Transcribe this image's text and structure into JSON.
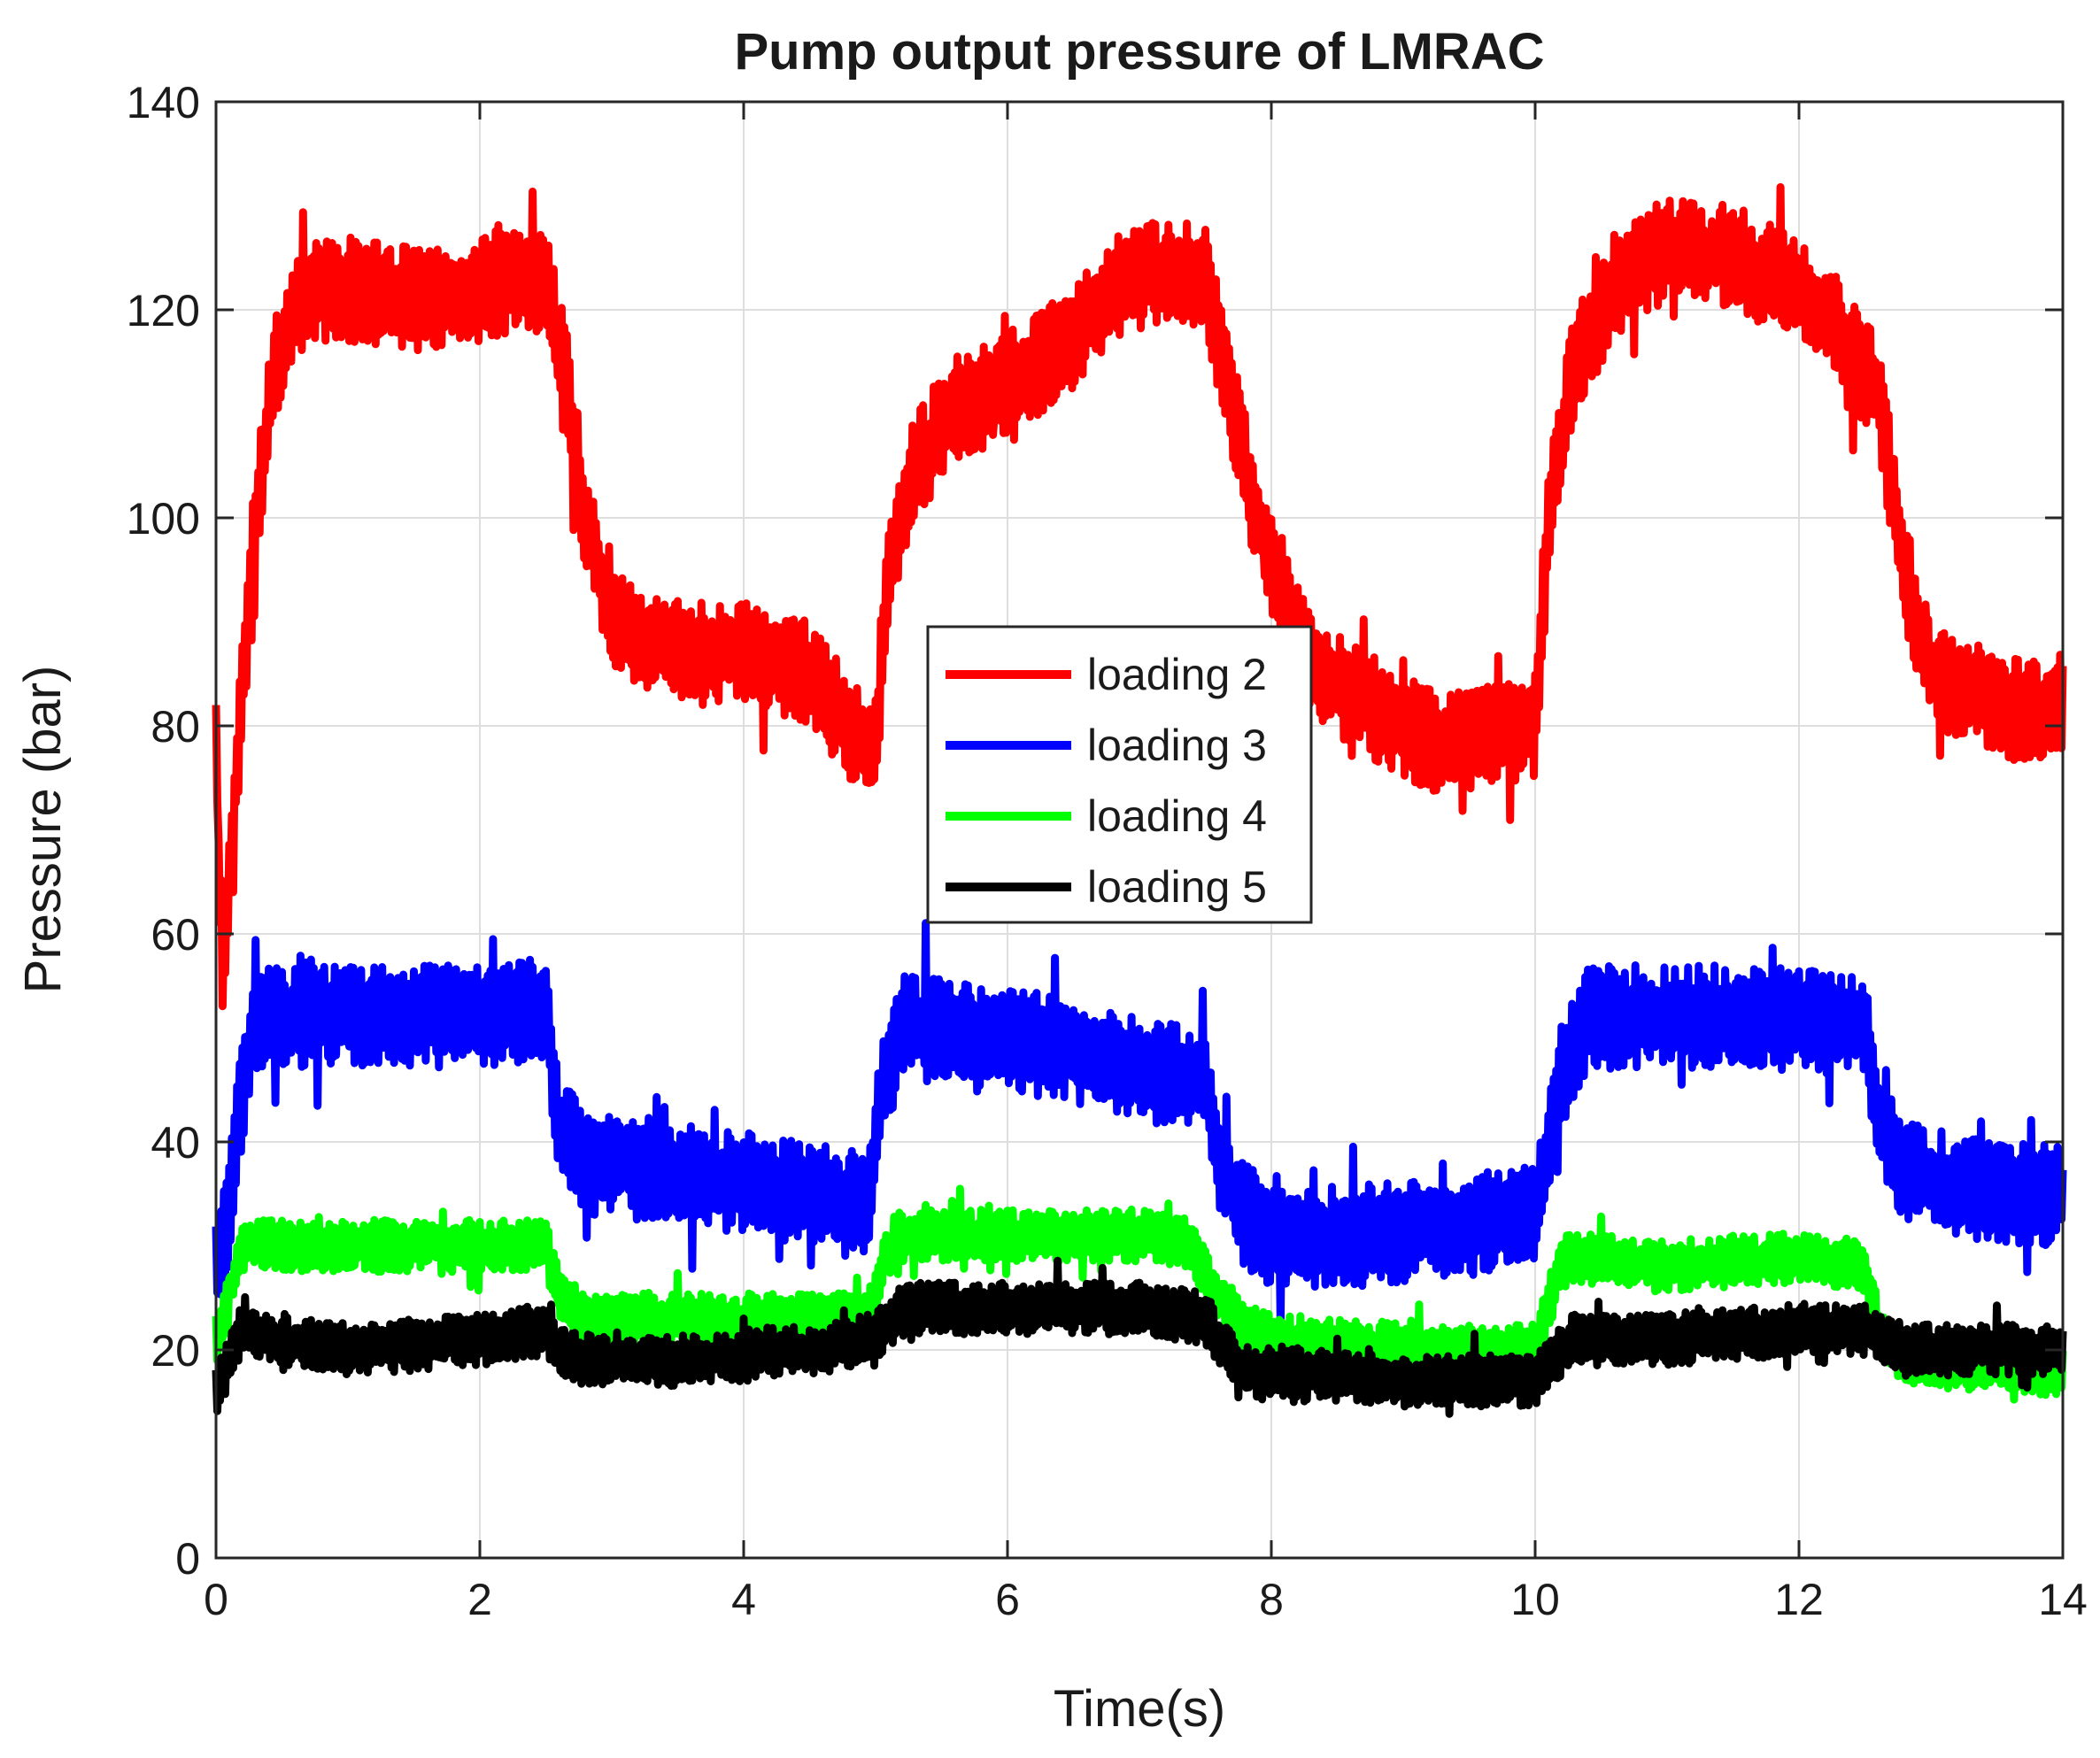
{
  "chart_data": {
    "type": "line",
    "title": "Pump output pressure of LMRAC",
    "xlabel": "Time(s)",
    "ylabel": "Pressure (bar)",
    "xlim": [
      0,
      14
    ],
    "ylim": [
      0,
      140
    ],
    "xticks": [
      0,
      2,
      4,
      6,
      8,
      10,
      12,
      14
    ],
    "yticks": [
      0,
      20,
      40,
      60,
      80,
      100,
      120,
      140
    ],
    "grid": true,
    "legend_position": "center",
    "series": [
      {
        "name": "loading 2",
        "color": "#ff0000",
        "noise": 5,
        "points": [
          [
            0,
            80
          ],
          [
            0.05,
            56
          ],
          [
            0.15,
            75
          ],
          [
            0.3,
            100
          ],
          [
            0.45,
            115
          ],
          [
            0.7,
            122
          ],
          [
            1.0,
            122
          ],
          [
            1.5,
            121
          ],
          [
            2.0,
            122
          ],
          [
            2.5,
            123
          ],
          [
            2.6,
            118
          ],
          [
            2.8,
            100
          ],
          [
            3.0,
            90
          ],
          [
            3.5,
            87
          ],
          [
            4.0,
            87
          ],
          [
            4.5,
            85
          ],
          [
            4.9,
            78
          ],
          [
            5.0,
            78
          ],
          [
            5.1,
            96
          ],
          [
            5.3,
            105
          ],
          [
            5.6,
            110
          ],
          [
            6.0,
            113
          ],
          [
            6.5,
            117
          ],
          [
            6.8,
            122
          ],
          [
            7.2,
            124
          ],
          [
            7.5,
            123
          ],
          [
            7.8,
            105
          ],
          [
            8.0,
            95
          ],
          [
            8.3,
            86
          ],
          [
            8.6,
            83
          ],
          [
            9.0,
            80
          ],
          [
            9.3,
            78
          ],
          [
            9.6,
            79
          ],
          [
            10.0,
            80
          ],
          [
            10.1,
            100
          ],
          [
            10.3,
            115
          ],
          [
            10.6,
            122
          ],
          [
            11.0,
            126
          ],
          [
            11.5,
            125
          ],
          [
            12.0,
            122
          ],
          [
            12.3,
            118
          ],
          [
            12.6,
            112
          ],
          [
            12.8,
            95
          ],
          [
            13.0,
            85
          ],
          [
            13.5,
            82
          ],
          [
            14.0,
            81
          ]
        ]
      },
      {
        "name": "loading 3",
        "color": "#0000ff",
        "noise": 5,
        "points": [
          [
            0,
            27
          ],
          [
            0.1,
            33
          ],
          [
            0.2,
            45
          ],
          [
            0.3,
            52
          ],
          [
            1.0,
            52
          ],
          [
            2.0,
            52
          ],
          [
            2.5,
            53
          ],
          [
            2.6,
            42
          ],
          [
            2.8,
            38
          ],
          [
            3.5,
            37
          ],
          [
            4.5,
            35
          ],
          [
            4.95,
            34
          ],
          [
            5.05,
            45
          ],
          [
            5.2,
            51
          ],
          [
            6.0,
            50
          ],
          [
            7.0,
            47
          ],
          [
            7.5,
            46
          ],
          [
            7.6,
            38
          ],
          [
            7.8,
            33
          ],
          [
            8.0,
            31
          ],
          [
            9.0,
            31
          ],
          [
            10.0,
            33
          ],
          [
            10.1,
            40
          ],
          [
            10.2,
            47
          ],
          [
            10.4,
            52
          ],
          [
            11.0,
            52
          ],
          [
            12.0,
            52
          ],
          [
            12.5,
            51
          ],
          [
            12.6,
            42
          ],
          [
            12.8,
            37
          ],
          [
            13.5,
            35
          ],
          [
            14.0,
            35
          ]
        ]
      },
      {
        "name": "loading 4",
        "color": "#00ff00",
        "noise": 2.5,
        "points": [
          [
            0,
            21
          ],
          [
            0.1,
            25
          ],
          [
            0.2,
            30
          ],
          [
            1.0,
            30
          ],
          [
            2.0,
            30
          ],
          [
            2.5,
            30
          ],
          [
            2.6,
            25
          ],
          [
            2.8,
            23
          ],
          [
            3.5,
            23
          ],
          [
            4.5,
            23
          ],
          [
            4.95,
            23
          ],
          [
            5.05,
            28
          ],
          [
            5.15,
            31
          ],
          [
            6.0,
            31
          ],
          [
            7.0,
            31
          ],
          [
            7.4,
            30
          ],
          [
            7.55,
            26
          ],
          [
            7.8,
            22
          ],
          [
            8.0,
            21
          ],
          [
            9.0,
            20
          ],
          [
            10.0,
            20
          ],
          [
            10.1,
            24
          ],
          [
            10.2,
            29
          ],
          [
            11.0,
            28
          ],
          [
            12.0,
            29
          ],
          [
            12.5,
            28
          ],
          [
            12.6,
            22
          ],
          [
            12.8,
            19
          ],
          [
            14.0,
            18
          ]
        ]
      },
      {
        "name": "loading 5",
        "color": "#000000",
        "noise": 2.5,
        "points": [
          [
            0,
            16
          ],
          [
            0.1,
            19
          ],
          [
            0.2,
            22
          ],
          [
            0.5,
            21
          ],
          [
            1.0,
            20
          ],
          [
            2.0,
            21
          ],
          [
            2.5,
            22
          ],
          [
            2.6,
            20
          ],
          [
            2.8,
            19
          ],
          [
            3.5,
            19
          ],
          [
            4.5,
            20
          ],
          [
            5.0,
            21
          ],
          [
            5.1,
            23
          ],
          [
            5.3,
            24
          ],
          [
            6.0,
            24
          ],
          [
            7.0,
            24
          ],
          [
            7.5,
            23
          ],
          [
            7.6,
            21
          ],
          [
            7.8,
            18
          ],
          [
            8.0,
            18
          ],
          [
            9.0,
            17
          ],
          [
            10.0,
            17
          ],
          [
            10.1,
            19
          ],
          [
            10.3,
            21
          ],
          [
            11.0,
            21
          ],
          [
            12.0,
            22
          ],
          [
            12.5,
            22
          ],
          [
            12.6,
            21
          ],
          [
            12.8,
            20
          ],
          [
            14.0,
            20
          ]
        ]
      }
    ]
  }
}
